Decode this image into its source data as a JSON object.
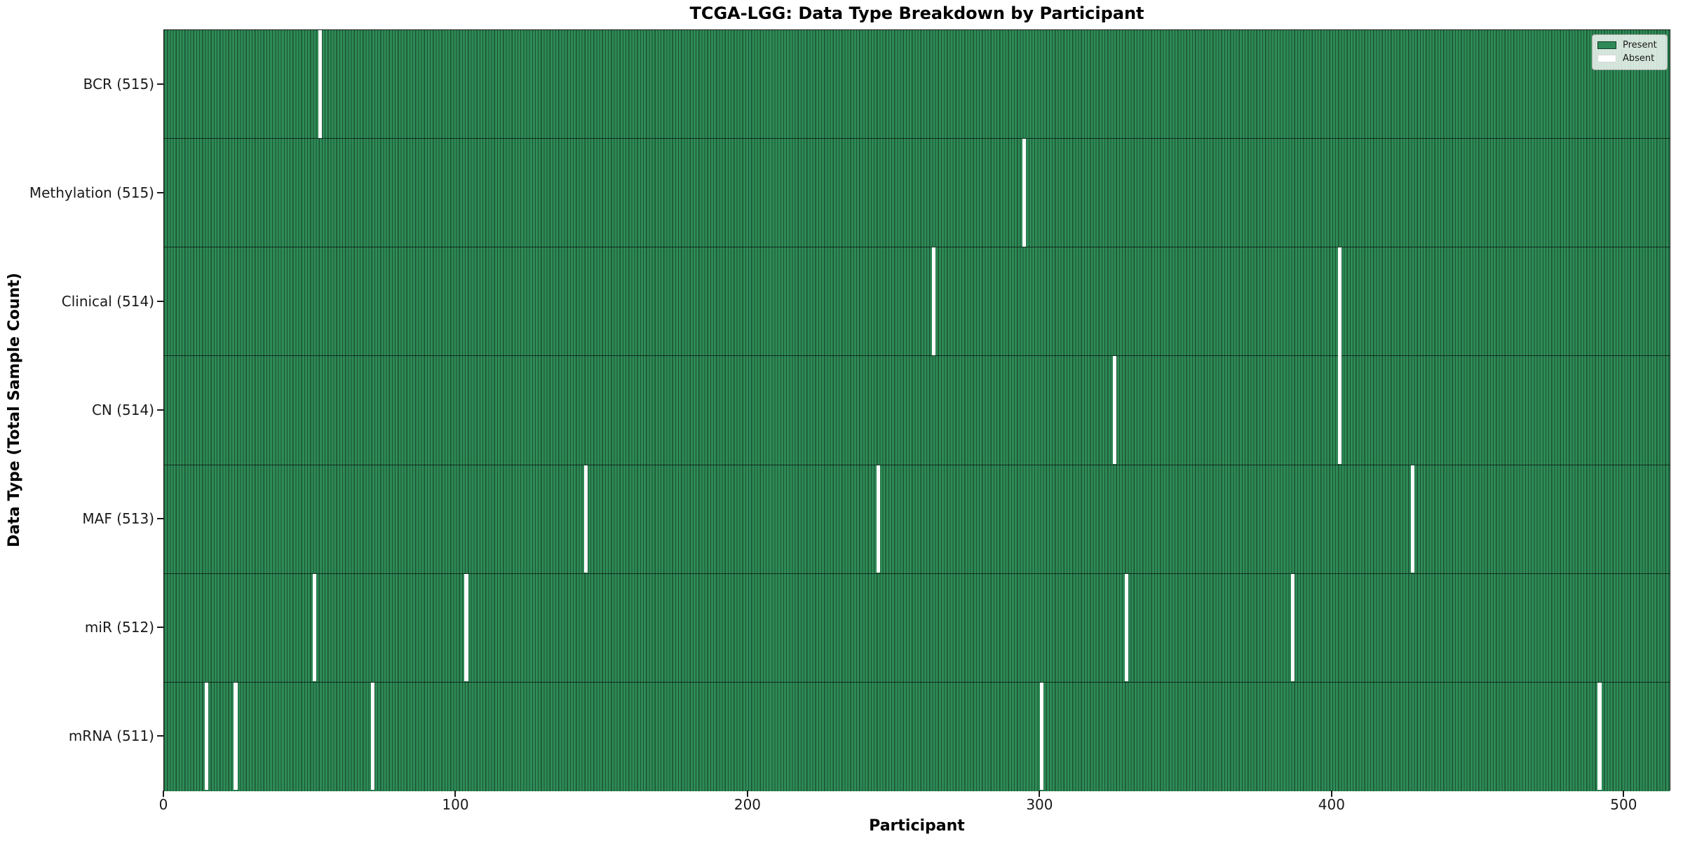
{
  "title": "TCGA-LGG: Data Type Breakdown by Participant",
  "x_axis": {
    "label": "Participant"
  },
  "y_axis": {
    "label": "Data Type (Total Sample Count)"
  },
  "legend": {
    "present_label": "Present",
    "absent_label": "Absent"
  },
  "chart_data": {
    "type": "heatmap",
    "title": "TCGA-LGG: Data Type Breakdown by Participant",
    "xlabel": "Participant",
    "ylabel": "Data Type (Total Sample Count)",
    "n_participants": 516,
    "x_ticks": [
      0,
      100,
      200,
      300,
      400,
      500
    ],
    "x_range": [
      0,
      516
    ],
    "grid": false,
    "legend_position": "top-right",
    "legend_entries": [
      "Present",
      "Absent"
    ],
    "colors": {
      "present": "#2e8b57",
      "absent": "#ffffff",
      "bar_edge": "rgba(0,0,0,0.42)"
    },
    "rows": [
      {
        "name": "BCR",
        "label": "BCR (515)",
        "total": 515,
        "absent_participants": [
          53
        ]
      },
      {
        "name": "Methylation",
        "label": "Methylation (515)",
        "total": 515,
        "absent_participants": [
          294
        ]
      },
      {
        "name": "Clinical",
        "label": "Clinical (514)",
        "total": 514,
        "absent_participants": [
          263,
          402
        ]
      },
      {
        "name": "CN",
        "label": "CN (514)",
        "total": 514,
        "absent_participants": [
          325,
          402
        ]
      },
      {
        "name": "MAF",
        "label": "MAF (513)",
        "total": 513,
        "absent_participants": [
          144,
          244,
          427
        ]
      },
      {
        "name": "miR",
        "label": "miR (512)",
        "total": 512,
        "absent_participants": [
          51,
          103,
          329,
          386
        ]
      },
      {
        "name": "mRNA",
        "label": "mRNA (511)",
        "total": 511,
        "absent_participants": [
          14,
          24,
          71,
          300,
          491
        ]
      }
    ]
  }
}
